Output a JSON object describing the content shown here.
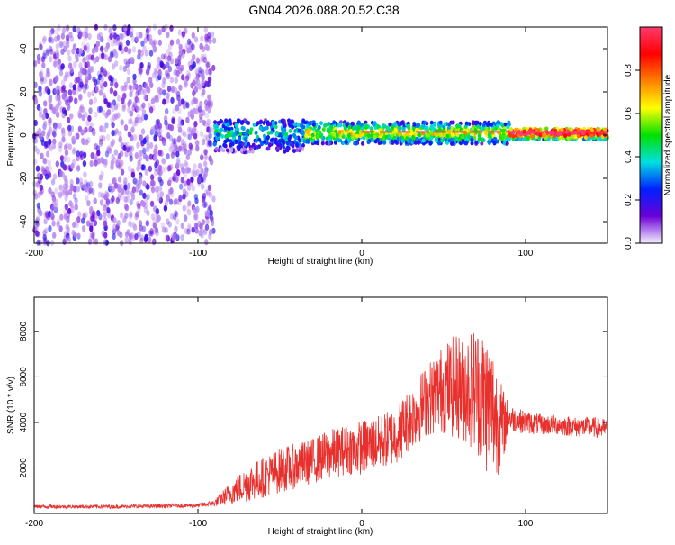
{
  "title": "GN04.2026.088.20.52.C38",
  "chart_data": [
    {
      "type": "heatmap",
      "xlabel": "Height of straight line (km)",
      "ylabel": "Frequency (Hz)",
      "xlim": [
        -200,
        150
      ],
      "ylim": [
        -50,
        50
      ],
      "xticks": [
        -200,
        -100,
        0,
        100
      ],
      "yticks": [
        -40,
        -20,
        0,
        20,
        40
      ],
      "grid": false,
      "colorbar": {
        "label": "Normalized spectral amplitude",
        "range": [
          0,
          1
        ],
        "ticks": [
          "0.0",
          "0.2",
          "0.4",
          "0.6",
          "0.8"
        ],
        "colormap": [
          "#f4efff",
          "#6a00d8",
          "#0020ff",
          "#00e0e0",
          "#00e000",
          "#ffff00",
          "#ff8000",
          "#ff0000",
          "#ff3a6e"
        ]
      },
      "regions": [
        {
          "x_from": -200,
          "x_to": -90,
          "freq_from": -50,
          "freq_to": 50,
          "level": 0.05,
          "pattern": "noise"
        },
        {
          "x_from": -90,
          "x_to": -35,
          "freq_from": -8,
          "freq_to": 7,
          "level": 0.35,
          "pattern": "band"
        },
        {
          "x_from": -35,
          "x_to": 90,
          "freq_from": -4,
          "freq_to": 6,
          "level": 0.55,
          "pattern": "band"
        },
        {
          "x_from": 90,
          "x_to": 150,
          "freq_from": -2,
          "freq_to": 3,
          "level": 0.95,
          "pattern": "band"
        }
      ],
      "peak_line": {
        "freq": 1.5,
        "color": "#ff3a6e"
      }
    },
    {
      "type": "line",
      "xlabel": "Height of straight line (km)",
      "ylabel": "SNR (10 * v/v)",
      "xlim": [
        -200,
        150
      ],
      "ylim": [
        0,
        9500
      ],
      "xticks": [
        -200,
        -100,
        0,
        100
      ],
      "yticks": [
        2000,
        4000,
        6000,
        8000
      ],
      "grid": false,
      "series": [
        {
          "color": "#e8302d",
          "x": [
            -200,
            -150,
            -100,
            -90,
            -80,
            -70,
            -60,
            -50,
            -40,
            -30,
            -20,
            -10,
            0,
            10,
            20,
            30,
            40,
            50,
            60,
            70,
            75,
            80,
            85,
            90,
            100,
            110,
            120,
            130,
            140,
            150
          ],
          "values": [
            300,
            300,
            350,
            450,
            900,
            1300,
            1600,
            1900,
            2100,
            2300,
            2600,
            2800,
            2900,
            3100,
            3400,
            4200,
            5000,
            5500,
            5600,
            5500,
            5000,
            4500,
            3800,
            4200,
            4000,
            3900,
            3900,
            3800,
            3800,
            3700
          ],
          "spread": [
            80,
            80,
            90,
            150,
            500,
            800,
            900,
            1000,
            1000,
            1000,
            1100,
            1100,
            1200,
            1200,
            1300,
            1400,
            1600,
            2000,
            2400,
            2800,
            3200,
            3000,
            2000,
            600,
            500,
            450,
            450,
            450,
            450,
            450
          ]
        }
      ]
    }
  ]
}
